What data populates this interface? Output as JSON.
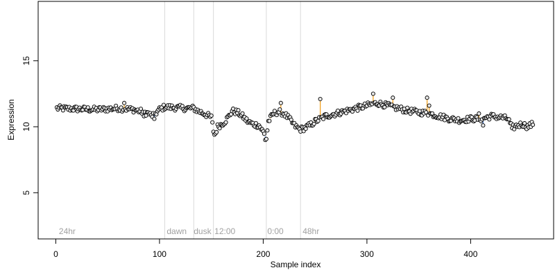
{
  "chart_data": {
    "type": "scatter",
    "title": "",
    "xlabel": "Sample index",
    "ylabel": "Expression",
    "xlim": [
      -17,
      480
    ],
    "ylim": [
      1.5,
      19.5
    ],
    "x_ticks": [
      0,
      100,
      200,
      300,
      400
    ],
    "y_ticks": [
      5,
      10,
      15
    ],
    "grid": false,
    "legend": "none",
    "colors": {
      "point_fill": "#e8e8e8",
      "point_edge": "#000000",
      "positive": "#f0a020",
      "negative": "#4a78c8",
      "phase_line": "#d9d9d9",
      "phase_label": "#a0a0a0"
    },
    "phase_lines": [
      105,
      133,
      152,
      203,
      236
    ],
    "phase_labels": [
      {
        "x": 3,
        "label": "24hr"
      },
      {
        "x": 107,
        "label": "dawn"
      },
      {
        "x": 133,
        "label": "dusk"
      },
      {
        "x": 153,
        "label": "12:00"
      },
      {
        "x": 204,
        "label": "0:00"
      },
      {
        "x": 238,
        "label": "48hr"
      }
    ],
    "anchors": [
      [
        1,
        11.4
      ],
      [
        20,
        11.35
      ],
      [
        40,
        11.3
      ],
      [
        60,
        11.4
      ],
      [
        75,
        11.3
      ],
      [
        85,
        11.1
      ],
      [
        90,
        11.0
      ],
      [
        92,
        10.8
      ],
      [
        96,
        11.0
      ],
      [
        100,
        11.3
      ],
      [
        105,
        11.5
      ],
      [
        115,
        11.45
      ],
      [
        125,
        11.4
      ],
      [
        133,
        11.4
      ],
      [
        137,
        11.2
      ],
      [
        143,
        11.0
      ],
      [
        150,
        10.7
      ],
      [
        152,
        9.7
      ],
      [
        154,
        9.5
      ],
      [
        156,
        10.0
      ],
      [
        160,
        10.2
      ],
      [
        163,
        10.4
      ],
      [
        167,
        10.8
      ],
      [
        170,
        11.2
      ],
      [
        175,
        11.1
      ],
      [
        180,
        10.8
      ],
      [
        185,
        10.4
      ],
      [
        190,
        10.2
      ],
      [
        196,
        10.1
      ],
      [
        200,
        9.6
      ],
      [
        203,
        9.1
      ],
      [
        205,
        10.4
      ],
      [
        210,
        11.0
      ],
      [
        215,
        11.15
      ],
      [
        220,
        11.0
      ],
      [
        225,
        10.6
      ],
      [
        230,
        10.1
      ],
      [
        235,
        9.8
      ],
      [
        240,
        9.9
      ],
      [
        245,
        10.1
      ],
      [
        250,
        10.4
      ],
      [
        255,
        10.6
      ],
      [
        260,
        10.8
      ],
      [
        270,
        11.0
      ],
      [
        280,
        11.2
      ],
      [
        290,
        11.4
      ],
      [
        300,
        11.6
      ],
      [
        310,
        11.8
      ],
      [
        320,
        11.6
      ],
      [
        330,
        11.4
      ],
      [
        340,
        11.2
      ],
      [
        350,
        11.1
      ],
      [
        360,
        11.0
      ],
      [
        370,
        10.8
      ],
      [
        380,
        10.6
      ],
      [
        390,
        10.5
      ],
      [
        400,
        10.6
      ],
      [
        410,
        10.6
      ],
      [
        420,
        10.8
      ],
      [
        430,
        10.7
      ],
      [
        436,
        10.6
      ],
      [
        440,
        9.9
      ],
      [
        445,
        10.1
      ],
      [
        450,
        10.2
      ],
      [
        455,
        10.0
      ],
      [
        460,
        10.2
      ]
    ],
    "outliers": [
      [
        66,
        11.8
      ],
      [
        85,
        10.8
      ],
      [
        95,
        10.6
      ],
      [
        153,
        9.4
      ],
      [
        202,
        9.0
      ],
      [
        217,
        11.8
      ],
      [
        255,
        12.1
      ],
      [
        306,
        12.5
      ],
      [
        325,
        12.2
      ],
      [
        358,
        12.2
      ],
      [
        360,
        11.6
      ],
      [
        408,
        11.0
      ],
      [
        412,
        10.1
      ],
      [
        440,
        9.9
      ]
    ],
    "point_count": 460,
    "jitter_amplitude": 0.22
  }
}
